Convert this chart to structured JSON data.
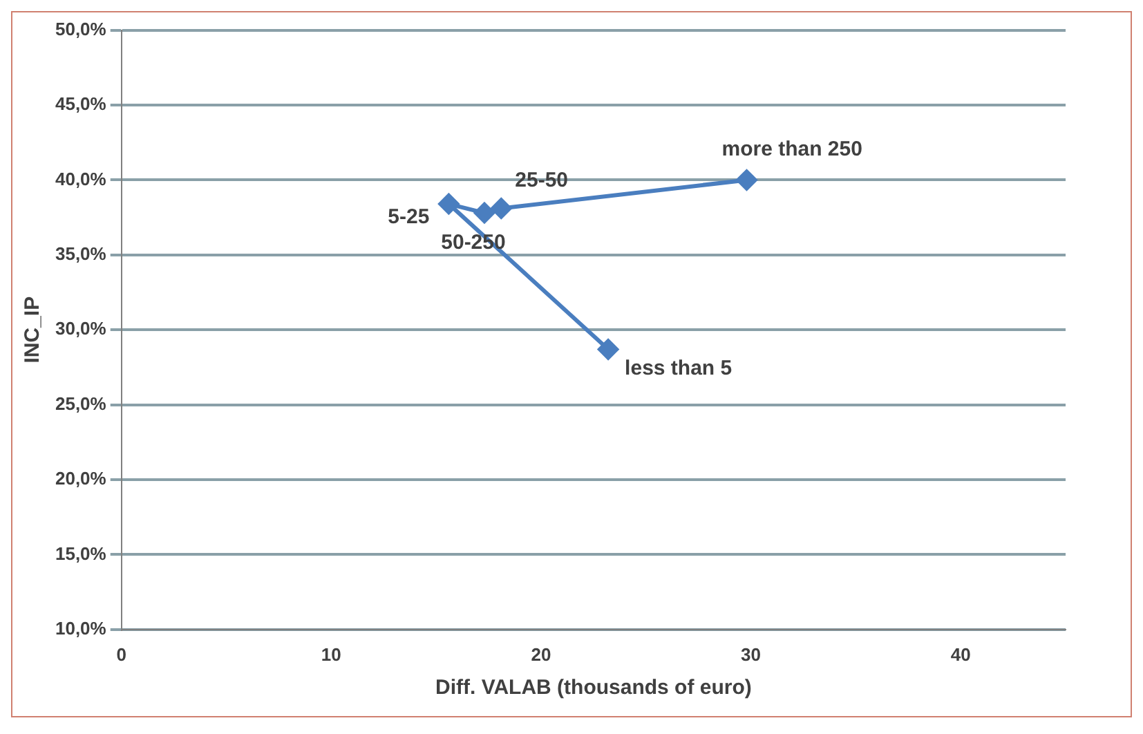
{
  "chart_data": {
    "type": "line",
    "xlabel": "Diff. VALAB (thousands of euro)",
    "ylabel": "INC_IP",
    "series": [
      {
        "color": "#4a7ebf",
        "x": [
          23.2,
          15.6,
          17.3,
          18.1,
          29.8
        ],
        "values": [
          28.7,
          38.4,
          37.8,
          38.1,
          40.0
        ]
      }
    ],
    "annotations": [
      {
        "text": "less than 5",
        "x": 23.2,
        "y": 28.7
      },
      {
        "text": "5-25",
        "x": 15.6,
        "y": 38.4
      },
      {
        "text": "50-250",
        "x": 17.3,
        "y": 37.8
      },
      {
        "text": "25-50",
        "x": 18.1,
        "y": 38.1
      },
      {
        "text": "more than 250",
        "x": 29.8,
        "y": 40.0
      }
    ],
    "xlim": [
      0,
      45
    ],
    "xticks": [
      0,
      10,
      20,
      30,
      40
    ],
    "ylim": [
      10,
      50
    ],
    "yticks": [
      {
        "value": 10,
        "label": "10,0%"
      },
      {
        "value": 15,
        "label": "15,0%"
      },
      {
        "value": 20,
        "label": "20,0%"
      },
      {
        "value": 25,
        "label": "25,0%"
      },
      {
        "value": 30,
        "label": "30,0%"
      },
      {
        "value": 35,
        "label": "35,0%"
      },
      {
        "value": 40,
        "label": "40,0%"
      },
      {
        "value": 45,
        "label": "45,0%"
      },
      {
        "value": 50,
        "label": "50,0%"
      }
    ],
    "grid": "y",
    "marker": "diamond",
    "line_style": "solid",
    "legend": false
  }
}
